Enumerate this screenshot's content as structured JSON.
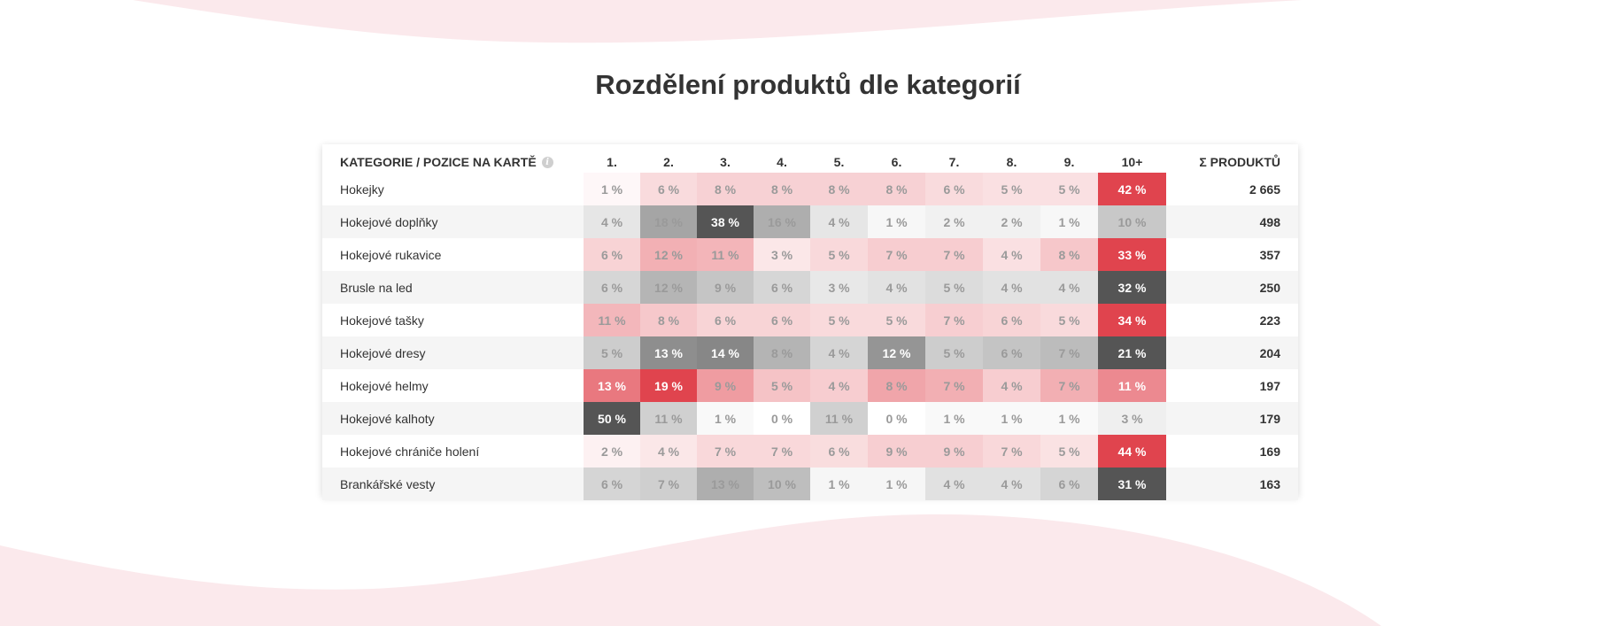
{
  "title": "Rozdělení produktů dle kategorií",
  "header": {
    "category_label": "KATEGORIE / POZICE NA KARTĚ",
    "positions": [
      "1.",
      "2.",
      "3.",
      "4.",
      "5.",
      "6.",
      "7.",
      "8.",
      "9.",
      "10+"
    ],
    "sum_label": "Σ PRODUKTŮ"
  },
  "colors": {
    "red_accent": "#e0444e",
    "grey_accent": "#555555",
    "wave": "#fbe9ec"
  },
  "rows": [
    {
      "name": "Hokejky",
      "tone": "red",
      "values": [
        "1 %",
        "6 %",
        "8 %",
        "8 %",
        "8 %",
        "8 %",
        "6 %",
        "5 %",
        "5 %",
        "42 %"
      ],
      "total": "2 665"
    },
    {
      "name": "Hokejové doplňky",
      "tone": "grey",
      "values": [
        "4 %",
        "18 %",
        "38 %",
        "16 %",
        "4 %",
        "1 %",
        "2 %",
        "2 %",
        "1 %",
        "10 %"
      ],
      "total": "498"
    },
    {
      "name": "Hokejové rukavice",
      "tone": "red",
      "values": [
        "6 %",
        "12 %",
        "11 %",
        "3 %",
        "5 %",
        "7 %",
        "7 %",
        "4 %",
        "8 %",
        "33 %"
      ],
      "total": "357"
    },
    {
      "name": "Brusle na led",
      "tone": "grey",
      "values": [
        "6 %",
        "12 %",
        "9 %",
        "6 %",
        "3 %",
        "4 %",
        "5 %",
        "4 %",
        "4 %",
        "32 %"
      ],
      "total": "250"
    },
    {
      "name": "Hokejové tašky",
      "tone": "red",
      "values": [
        "11 %",
        "8 %",
        "6 %",
        "6 %",
        "5 %",
        "5 %",
        "7 %",
        "6 %",
        "5 %",
        "34 %"
      ],
      "total": "223"
    },
    {
      "name": "Hokejové dresy",
      "tone": "grey",
      "values": [
        "5 %",
        "13 %",
        "14 %",
        "8 %",
        "4 %",
        "12 %",
        "5 %",
        "6 %",
        "7 %",
        "21 %"
      ],
      "total": "204"
    },
    {
      "name": "Hokejové helmy",
      "tone": "red",
      "values": [
        "13 %",
        "19 %",
        "9 %",
        "5 %",
        "4 %",
        "8 %",
        "7 %",
        "4 %",
        "7 %",
        "11 %"
      ],
      "total": "197"
    },
    {
      "name": "Hokejové kalhoty",
      "tone": "grey",
      "values": [
        "50 %",
        "11 %",
        "1 %",
        "0 %",
        "11 %",
        "0 %",
        "1 %",
        "1 %",
        "1 %",
        "3 %"
      ],
      "total": "179"
    },
    {
      "name": "Hokejové chrániče holení",
      "tone": "red",
      "values": [
        "2 %",
        "4 %",
        "7 %",
        "7 %",
        "6 %",
        "9 %",
        "9 %",
        "7 %",
        "5 %",
        "44 %"
      ],
      "total": "169"
    },
    {
      "name": "Brankářské vesty",
      "tone": "grey",
      "values": [
        "6 %",
        "7 %",
        "13 %",
        "10 %",
        "1 %",
        "1 %",
        "4 %",
        "4 %",
        "6 %",
        "31 %"
      ],
      "total": "163"
    }
  ]
}
